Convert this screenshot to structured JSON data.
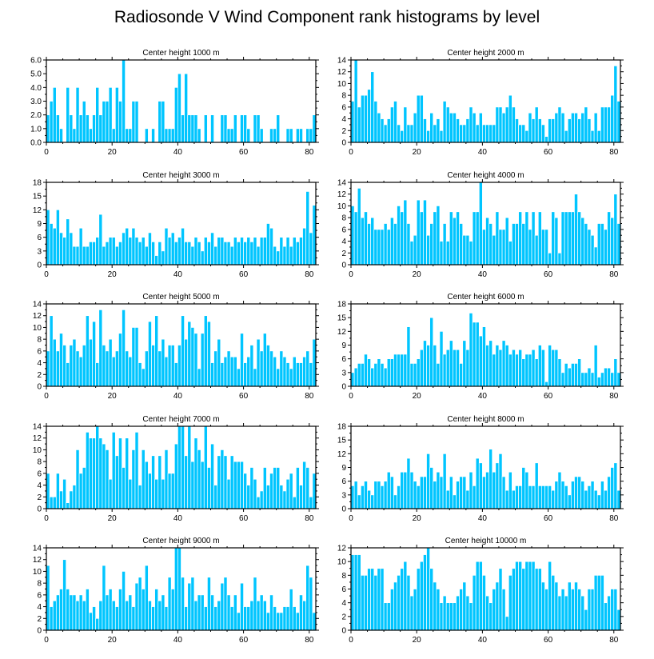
{
  "title": "Radiosonde V Wind Component rank histograms by level",
  "colors": {
    "bar": "#00C5FF",
    "bar_edge": "#ffffff",
    "axis": "#000000"
  },
  "chart_data": [
    {
      "type": "bar",
      "title": "Center height 1000 m",
      "xlim": [
        0,
        82
      ],
      "ylim": [
        0,
        6
      ],
      "xticks": [
        0,
        20,
        40,
        60,
        80
      ],
      "yticks": [
        0,
        1,
        2,
        3,
        4,
        5,
        6
      ],
      "ytick_labels": [
        "0.0",
        "1.0",
        "2.0",
        "3.0",
        "4.0",
        "5.0",
        "6.0"
      ],
      "values": [
        2,
        3,
        4,
        2,
        1,
        0,
        4,
        2,
        1,
        4,
        2,
        3,
        2,
        1,
        2,
        4,
        2,
        3,
        3,
        4,
        1,
        4,
        3,
        6,
        1,
        1,
        3,
        3,
        0,
        0,
        1,
        0,
        1,
        0,
        3,
        3,
        1,
        1,
        1,
        4,
        5,
        2,
        5,
        2,
        2,
        2,
        1,
        0,
        2,
        0,
        2,
        0,
        0,
        2,
        2,
        1,
        1,
        2,
        0,
        2,
        2,
        1,
        0,
        2,
        2,
        1,
        0,
        0,
        1,
        1,
        2,
        0,
        0,
        1,
        1,
        0,
        1,
        1,
        0,
        1,
        1,
        2
      ]
    },
    {
      "type": "bar",
      "title": "Center height 2000 m",
      "xlim": [
        0,
        82
      ],
      "ylim": [
        0,
        14
      ],
      "xticks": [
        0,
        20,
        40,
        60,
        80
      ],
      "yticks": [
        0,
        2,
        4,
        6,
        8,
        10,
        12,
        14
      ],
      "ytick_labels": [
        "0",
        "2",
        "4",
        "6",
        "8",
        "10",
        "12",
        "14"
      ],
      "values": [
        7,
        14,
        6,
        8,
        8,
        9,
        12,
        7,
        5,
        4,
        3,
        4,
        6,
        7,
        3,
        2,
        6,
        3,
        3,
        5,
        8,
        8,
        4,
        2,
        5,
        3,
        4,
        2,
        7,
        6,
        5,
        5,
        4,
        3,
        3,
        4,
        6,
        5,
        3,
        5,
        3,
        3,
        3,
        3,
        6,
        6,
        5,
        6,
        8,
        6,
        4,
        3,
        3,
        2,
        5,
        4,
        6,
        4,
        3,
        1,
        4,
        4,
        5,
        6,
        5,
        2,
        4,
        5,
        5,
        4,
        5,
        6,
        4,
        2,
        5,
        2,
        6,
        6,
        6,
        8,
        13,
        7
      ]
    },
    {
      "type": "bar",
      "title": "Center height 3000 m",
      "xlim": [
        0,
        82
      ],
      "ylim": [
        0,
        18
      ],
      "xticks": [
        0,
        20,
        40,
        60,
        80
      ],
      "yticks": [
        0,
        3,
        6,
        9,
        12,
        15,
        18
      ],
      "ytick_labels": [
        "0",
        "3",
        "6",
        "9",
        "12",
        "15",
        "18"
      ],
      "values": [
        12,
        9,
        8,
        12,
        7,
        6,
        10,
        7,
        4,
        4,
        8,
        4,
        4,
        5,
        5,
        6,
        11,
        4,
        5,
        6,
        6,
        4,
        5,
        7,
        8,
        6,
        8,
        6,
        5,
        6,
        4,
        7,
        5,
        2,
        5,
        3,
        8,
        6,
        7,
        5,
        6,
        8,
        5,
        5,
        4,
        6,
        5,
        3,
        6,
        5,
        7,
        4,
        6,
        6,
        5,
        5,
        4,
        6,
        5,
        6,
        5,
        6,
        5,
        6,
        4,
        6,
        6,
        9,
        8,
        4,
        3,
        6,
        4,
        6,
        4,
        6,
        5,
        6,
        8,
        16,
        7,
        13
      ]
    },
    {
      "type": "bar",
      "title": "Center height 4000 m",
      "xlim": [
        0,
        82
      ],
      "ylim": [
        0,
        14
      ],
      "xticks": [
        0,
        20,
        40,
        60,
        80
      ],
      "yticks": [
        0,
        2,
        4,
        6,
        8,
        10,
        12,
        14
      ],
      "ytick_labels": [
        "0",
        "2",
        "4",
        "6",
        "8",
        "10",
        "12",
        "14"
      ],
      "values": [
        10,
        9,
        13,
        8,
        9,
        7,
        8,
        6,
        6,
        6,
        7,
        6,
        8,
        7,
        10,
        9,
        11,
        7,
        4,
        5,
        11,
        9,
        11,
        5,
        7,
        9,
        10,
        4,
        7,
        4,
        9,
        8,
        9,
        7,
        5,
        5,
        4,
        9,
        9,
        14,
        6,
        8,
        7,
        5,
        9,
        6,
        6,
        8,
        4,
        7,
        7,
        9,
        7,
        9,
        6,
        9,
        5,
        9,
        6,
        6,
        2,
        9,
        8,
        2,
        9,
        9,
        9,
        9,
        12,
        9,
        8,
        7,
        6,
        5,
        3,
        7,
        7,
        6,
        9,
        8,
        12,
        7
      ]
    },
    {
      "type": "bar",
      "title": "Center height 5000 m",
      "xlim": [
        0,
        82
      ],
      "ylim": [
        0,
        14
      ],
      "xticks": [
        0,
        20,
        40,
        60,
        80
      ],
      "yticks": [
        0,
        2,
        4,
        6,
        8,
        10,
        12,
        14
      ],
      "ytick_labels": [
        "0",
        "2",
        "4",
        "6",
        "8",
        "10",
        "12",
        "14"
      ],
      "values": [
        6,
        12,
        8,
        6,
        9,
        7,
        4,
        7,
        8,
        6,
        5,
        7,
        12,
        8,
        11,
        4,
        13,
        7,
        6,
        8,
        5,
        6,
        9,
        13,
        6,
        5,
        10,
        10,
        4,
        3,
        6,
        11,
        7,
        12,
        6,
        8,
        5,
        7,
        7,
        4,
        7,
        12,
        8,
        11,
        10,
        9,
        3,
        9,
        12,
        11,
        4,
        6,
        8,
        4,
        5,
        6,
        5,
        5,
        3,
        9,
        4,
        5,
        7,
        3,
        8,
        6,
        9,
        7,
        6,
        5,
        3,
        6,
        5,
        4,
        3,
        5,
        4,
        4,
        5,
        6,
        4,
        8
      ]
    },
    {
      "type": "bar",
      "title": "Center height 6000 m",
      "xlim": [
        0,
        82
      ],
      "ylim": [
        0,
        18
      ],
      "xticks": [
        0,
        20,
        40,
        60,
        80
      ],
      "yticks": [
        0,
        3,
        6,
        9,
        12,
        15,
        18
      ],
      "ytick_labels": [
        "0",
        "3",
        "6",
        "9",
        "12",
        "15",
        "18"
      ],
      "values": [
        3,
        4,
        5,
        5,
        7,
        6,
        4,
        5,
        6,
        5,
        4,
        6,
        6,
        7,
        7,
        7,
        7,
        13,
        5,
        5,
        6,
        8,
        10,
        9,
        15,
        9,
        5,
        12,
        7,
        8,
        10,
        8,
        8,
        5,
        10,
        8,
        16,
        14,
        14,
        11,
        13,
        9,
        10,
        7,
        9,
        8,
        10,
        9,
        7,
        8,
        7,
        8,
        6,
        7,
        7,
        8,
        6,
        9,
        8,
        1,
        9,
        8,
        8,
        6,
        3,
        5,
        4,
        5,
        5,
        6,
        3,
        3,
        4,
        3,
        9,
        2,
        3,
        4,
        4,
        3,
        6,
        3
      ]
    },
    {
      "type": "bar",
      "title": "Center height 7000 m",
      "xlim": [
        0,
        82
      ],
      "ylim": [
        0,
        14
      ],
      "xticks": [
        0,
        20,
        40,
        60,
        80
      ],
      "yticks": [
        0,
        2,
        4,
        6,
        8,
        10,
        12,
        14
      ],
      "ytick_labels": [
        "0",
        "2",
        "4",
        "6",
        "8",
        "10",
        "12",
        "14"
      ],
      "values": [
        6,
        2,
        2,
        6,
        3,
        5,
        1,
        3,
        4,
        10,
        6,
        7,
        13,
        12,
        12,
        14,
        12,
        11,
        10,
        5,
        13,
        9,
        12,
        7,
        12,
        5,
        10,
        13,
        4,
        10,
        8,
        6,
        9,
        5,
        9,
        5,
        10,
        6,
        6,
        11,
        14,
        14,
        9,
        14,
        8,
        12,
        10,
        8,
        14,
        7,
        11,
        4,
        9,
        10,
        9,
        5,
        9,
        8,
        8,
        8,
        6,
        4,
        7,
        5,
        2,
        3,
        7,
        4,
        6,
        7,
        7,
        4,
        3,
        5,
        6,
        2,
        7,
        4,
        8,
        7,
        2,
        6
      ]
    },
    {
      "type": "bar",
      "title": "Center height 8000 m",
      "xlim": [
        0,
        82
      ],
      "ylim": [
        0,
        18
      ],
      "xticks": [
        0,
        20,
        40,
        60,
        80
      ],
      "yticks": [
        0,
        3,
        6,
        9,
        12,
        15,
        18
      ],
      "ytick_labels": [
        "0",
        "3",
        "6",
        "9",
        "12",
        "15",
        "18"
      ],
      "values": [
        5,
        6,
        3,
        5,
        6,
        4,
        3,
        6,
        6,
        5,
        6,
        8,
        7,
        3,
        5,
        8,
        8,
        11,
        8,
        6,
        5,
        7,
        7,
        12,
        9,
        6,
        8,
        7,
        12,
        4,
        7,
        3,
        6,
        7,
        7,
        4,
        8,
        5,
        11,
        10,
        7,
        8,
        13,
        8,
        10,
        12,
        7,
        4,
        8,
        4,
        5,
        5,
        9,
        8,
        5,
        5,
        10,
        5,
        5,
        5,
        5,
        4,
        6,
        8,
        6,
        5,
        3,
        6,
        7,
        7,
        6,
        4,
        5,
        6,
        4,
        3,
        6,
        4,
        7,
        9,
        10,
        4
      ]
    },
    {
      "type": "bar",
      "title": "Center height 9000 m",
      "xlim": [
        0,
        82
      ],
      "ylim": [
        0,
        14
      ],
      "xticks": [
        0,
        20,
        40,
        60,
        80
      ],
      "yticks": [
        0,
        2,
        4,
        6,
        8,
        10,
        12,
        14
      ],
      "ytick_labels": [
        "0",
        "2",
        "4",
        "6",
        "8",
        "10",
        "12",
        "14"
      ],
      "values": [
        11,
        4,
        5,
        6,
        7,
        12,
        7,
        6,
        6,
        5,
        6,
        5,
        7,
        3,
        4,
        2,
        5,
        11,
        6,
        7,
        5,
        4,
        7,
        10,
        5,
        6,
        4,
        8,
        9,
        7,
        11,
        5,
        4,
        7,
        5,
        6,
        4,
        9,
        7,
        14,
        14,
        9,
        4,
        8,
        9,
        5,
        6,
        6,
        4,
        9,
        6,
        4,
        5,
        8,
        9,
        6,
        4,
        6,
        3,
        8,
        4,
        4,
        5,
        9,
        5,
        6,
        5,
        3,
        6,
        4,
        3,
        3,
        4,
        4,
        7,
        4,
        3,
        6,
        5,
        11,
        9,
        3
      ]
    },
    {
      "type": "bar",
      "title": "Center height 10000 m",
      "xlim": [
        0,
        82
      ],
      "ylim": [
        0,
        12
      ],
      "xticks": [
        0,
        20,
        40,
        60,
        80
      ],
      "yticks": [
        0,
        2,
        4,
        6,
        8,
        10,
        12
      ],
      "ytick_labels": [
        "0",
        "2",
        "4",
        "6",
        "8",
        "10",
        "12"
      ],
      "values": [
        11,
        11,
        11,
        8,
        8,
        9,
        9,
        8,
        9,
        9,
        4,
        4,
        6,
        7,
        8,
        9,
        10,
        8,
        5,
        6,
        9,
        10,
        11,
        12,
        9,
        7,
        6,
        4,
        5,
        4,
        4,
        4,
        5,
        6,
        7,
        5,
        4,
        8,
        10,
        10,
        8,
        5,
        4,
        6,
        7,
        9,
        6,
        2,
        8,
        9,
        10,
        10,
        9,
        10,
        10,
        10,
        9,
        9,
        7,
        6,
        10,
        8,
        7,
        5,
        6,
        5,
        7,
        6,
        7,
        6,
        5,
        3,
        6,
        6,
        8,
        8,
        8,
        4,
        5,
        6,
        6,
        3
      ]
    }
  ]
}
